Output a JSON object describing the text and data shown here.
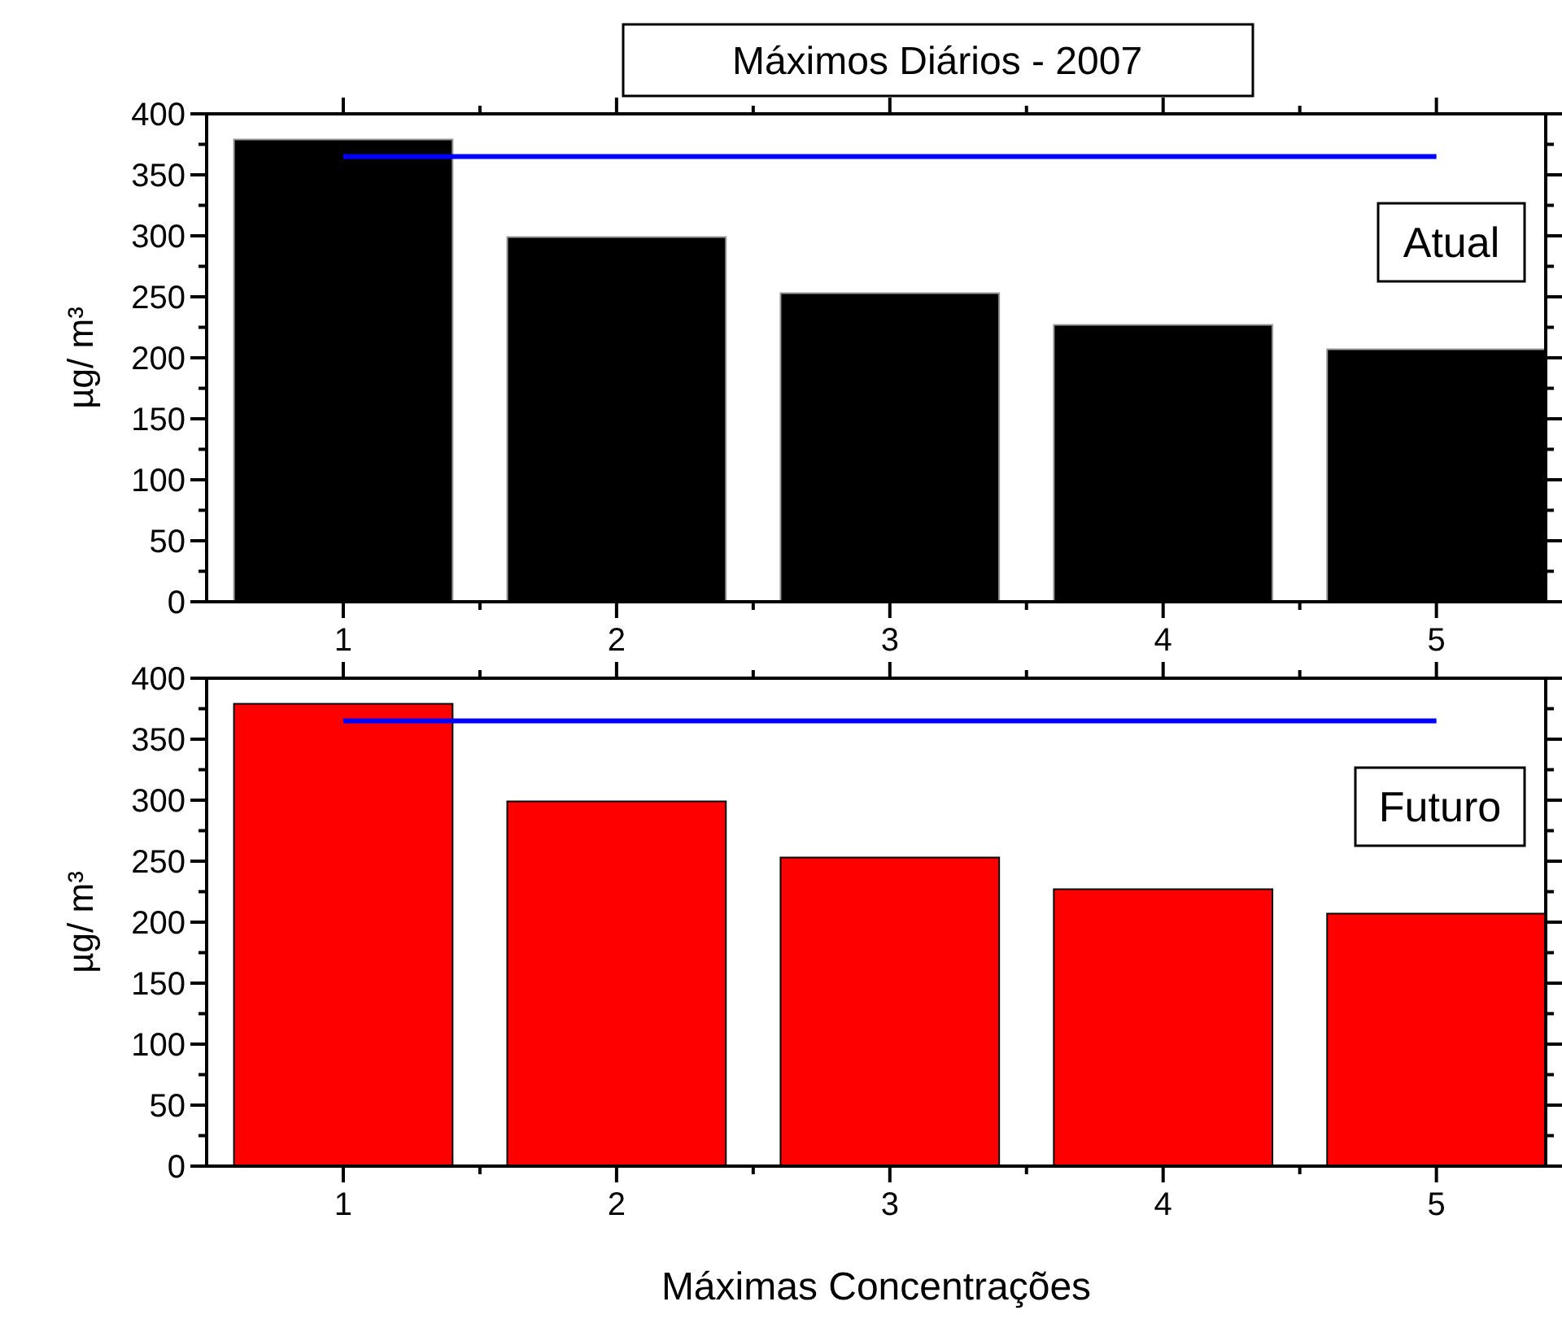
{
  "chart_data": [
    {
      "type": "bar",
      "title": "Máximos Diários - 2007",
      "ylabel": "µg/ m³",
      "x": [
        1,
        2,
        3,
        4,
        5
      ],
      "series": [
        {
          "color": "#000000",
          "values": [
            379,
            299,
            253,
            227,
            207
          ]
        },
        {
          "type": "line",
          "color": "#0000ff",
          "values": [
            365,
            365,
            365,
            365,
            365
          ]
        }
      ],
      "xlim": [
        0.5,
        5.4
      ],
      "xticks": [
        1,
        {
          "value": 1.5,
          "label": null
        },
        2,
        {
          "value": 2.5,
          "label": null
        },
        3,
        {
          "value": 3.5,
          "label": null
        },
        4,
        {
          "value": 4.5,
          "label": null
        },
        5
      ],
      "ylim": [
        0,
        400
      ],
      "yticks": [
        0,
        {
          "value": 25,
          "label": null
        },
        50,
        {
          "value": 75,
          "label": null
        },
        100,
        {
          "value": 125,
          "label": null
        },
        150,
        {
          "value": 175,
          "label": null
        },
        200,
        {
          "value": 225,
          "label": null
        },
        250,
        {
          "value": 275,
          "label": null
        },
        300,
        {
          "value": 325,
          "label": null
        },
        350,
        {
          "value": 375,
          "label": null
        },
        400
      ],
      "annotations": [
        "Atual"
      ],
      "grid": false
    },
    {
      "type": "bar",
      "xlabel": "Máximas Concentrações",
      "ylabel": "µg/ m³",
      "x": [
        1,
        2,
        3,
        4,
        5
      ],
      "series": [
        {
          "color": "#ff0000",
          "values": [
            379,
            299,
            253,
            227,
            207
          ]
        },
        {
          "type": "line",
          "color": "#0000ff",
          "values": [
            365,
            365,
            365,
            365,
            365
          ]
        }
      ],
      "xlim": [
        0.5,
        5.4
      ],
      "xticks": [
        1,
        {
          "value": 1.5,
          "label": null
        },
        2,
        {
          "value": 2.5,
          "label": null
        },
        3,
        {
          "value": 3.5,
          "label": null
        },
        4,
        {
          "value": 4.5,
          "label": null
        },
        5
      ],
      "ylim": [
        0,
        400
      ],
      "yticks": [
        0,
        {
          "value": 25,
          "label": null
        },
        50,
        {
          "value": 75,
          "label": null
        },
        100,
        {
          "value": 125,
          "label": null
        },
        150,
        {
          "value": 175,
          "label": null
        },
        200,
        {
          "value": 225,
          "label": null
        },
        250,
        {
          "value": 275,
          "label": null
        },
        300,
        {
          "value": 325,
          "label": null
        },
        350,
        {
          "value": 375,
          "label": null
        },
        400
      ],
      "annotations": [
        "Futuro"
      ],
      "grid": false
    }
  ]
}
